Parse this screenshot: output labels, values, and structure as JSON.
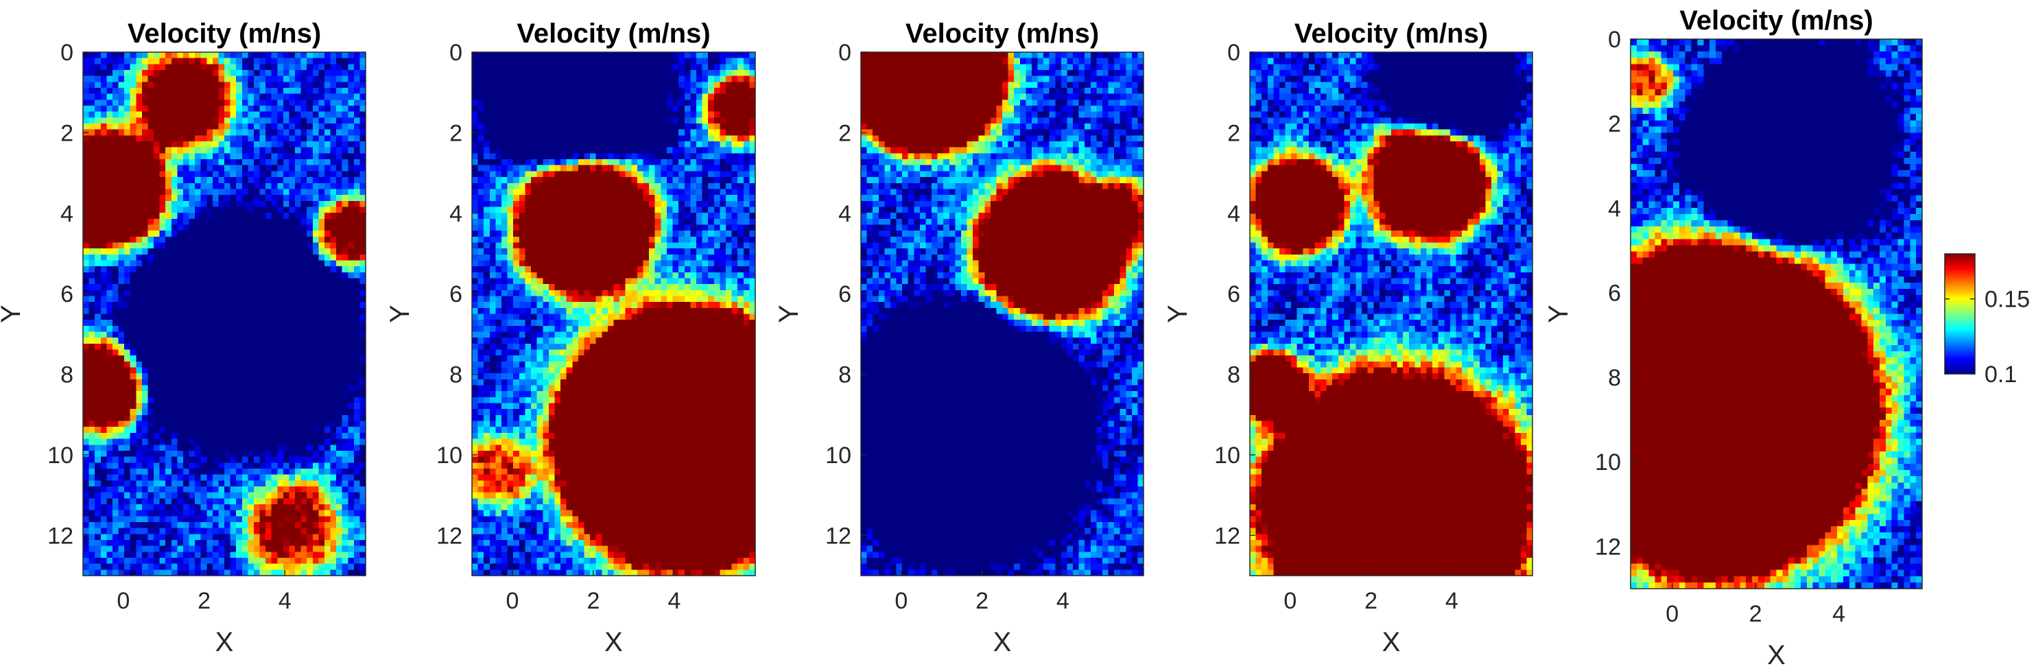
{
  "chart_data": [
    {
      "type": "heatmap",
      "title": "Velocity (m/ns)",
      "xlabel": "X",
      "ylabel": "Y",
      "xlim": [
        -1,
        6
      ],
      "ylim": [
        13,
        0
      ],
      "xticks": [
        "0",
        "2",
        "4"
      ],
      "yticks": [
        "0",
        "2",
        "4",
        "6",
        "8",
        "10",
        "12"
      ],
      "blobs": [
        [
          -0.4,
          3.4,
          1.3,
          0.15
        ],
        [
          1.5,
          1.2,
          1.1,
          0.1
        ],
        [
          -0.6,
          8.3,
          1.0,
          0.12
        ],
        [
          4.2,
          11.8,
          1.1,
          0.07
        ],
        [
          5.6,
          4.5,
          0.8,
          0.08
        ],
        [
          2.9,
          7.0,
          2.2,
          -0.14
        ]
      ]
    },
    {
      "type": "heatmap",
      "title": "Velocity (m/ns)",
      "xlabel": "X",
      "ylabel": "Y",
      "xlim": [
        -1,
        6
      ],
      "ylim": [
        13,
        0
      ],
      "xticks": [
        "0",
        "2",
        "4"
      ],
      "yticks": [
        "0",
        "2",
        "4",
        "6",
        "8",
        "10",
        "12"
      ],
      "blobs": [
        [
          4.3,
          9.6,
          2.6,
          0.32
        ],
        [
          1.8,
          4.3,
          1.5,
          0.17
        ],
        [
          5.6,
          1.4,
          0.8,
          0.08
        ],
        [
          -0.4,
          10.4,
          0.8,
          0.06
        ],
        [
          1.5,
          0.8,
          1.8,
          -0.12
        ]
      ]
    },
    {
      "type": "heatmap",
      "title": "Velocity (m/ns)",
      "xlabel": "X",
      "ylabel": "Y",
      "xlim": [
        -1,
        6
      ],
      "ylim": [
        13,
        0
      ],
      "xticks": [
        "0",
        "2",
        "4"
      ],
      "yticks": [
        "0",
        "2",
        "4",
        "6",
        "8",
        "10",
        "12"
      ],
      "blobs": [
        [
          0.6,
          0.5,
          1.6,
          0.3
        ],
        [
          3.7,
          4.8,
          1.6,
          0.17
        ],
        [
          5.6,
          4.0,
          0.8,
          0.06
        ],
        [
          1.5,
          9.5,
          2.5,
          -0.12
        ]
      ]
    },
    {
      "type": "heatmap",
      "title": "Velocity (m/ns)",
      "xlabel": "X",
      "ylabel": "Y",
      "xlim": [
        -1,
        6
      ],
      "ylim": [
        13,
        0
      ],
      "xticks": [
        "0",
        "2",
        "4"
      ],
      "yticks": [
        "0",
        "2",
        "4",
        "6",
        "8",
        "10",
        "12"
      ],
      "blobs": [
        [
          2.6,
          11.3,
          2.9,
          0.2
        ],
        [
          3.4,
          3.2,
          1.3,
          0.15
        ],
        [
          0.2,
          3.8,
          1.1,
          0.12
        ],
        [
          -0.5,
          8.3,
          0.8,
          0.1
        ],
        [
          3.9,
          0.8,
          1.3,
          -0.1
        ]
      ]
    },
    {
      "type": "heatmap",
      "title": "Velocity (m/ns)",
      "xlabel": "X",
      "ylabel": "Y",
      "xlim": [
        -1,
        6
      ],
      "ylim": [
        13,
        0
      ],
      "xticks": [
        "0",
        "2",
        "4"
      ],
      "yticks": [
        "0",
        "2",
        "4",
        "6",
        "8",
        "10",
        "12"
      ],
      "blobs": [
        [
          1.0,
          8.8,
          3.1,
          0.34
        ],
        [
          -0.6,
          1.0,
          0.6,
          0.06
        ],
        [
          2.8,
          2.5,
          1.9,
          -0.12
        ]
      ]
    }
  ],
  "colorbar": {
    "range": [
      0.1,
      0.18
    ],
    "ticks": [
      {
        "value": 0.15,
        "label": "0.15"
      },
      {
        "value": 0.1,
        "label": "0.1"
      }
    ]
  }
}
